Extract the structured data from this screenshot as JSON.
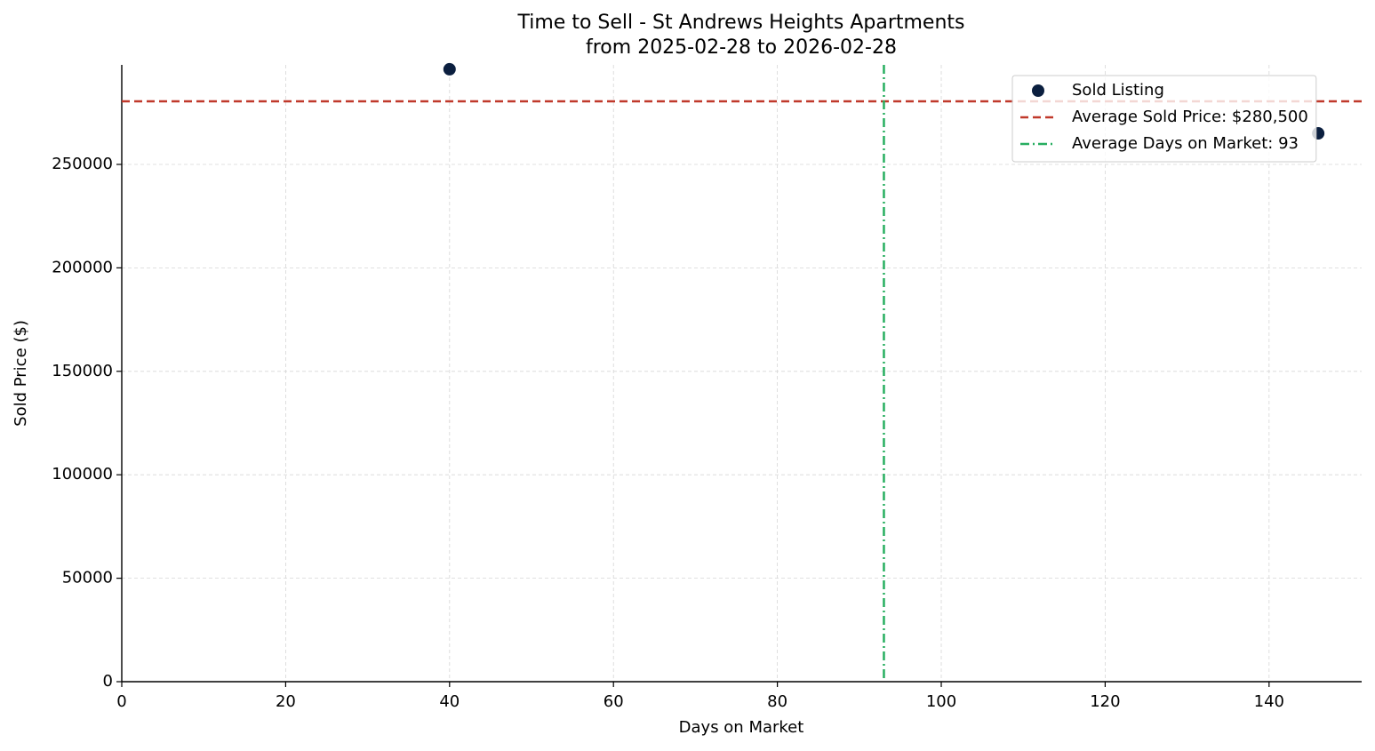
{
  "chart_data": {
    "type": "scatter",
    "title": "Time to Sell - St Andrews Heights Apartments",
    "subtitle": "from 2025-02-28 to 2026-02-28",
    "x_label": "Days on Market",
    "y_label": "Sold Price ($)",
    "series": [
      {
        "name": "Sold Listing",
        "color": "#0b1f3f",
        "x": [
          40,
          146
        ],
        "values": [
          296000,
          265000
        ]
      }
    ],
    "hlines": [
      {
        "name": "Average Sold Price: $280,500",
        "value": 280500,
        "color": "#c0392b",
        "style": "dashed"
      }
    ],
    "vlines": [
      {
        "name": "Average Days on Market: 93",
        "value": 93,
        "color": "#27ae60",
        "style": "dashdot"
      }
    ],
    "xlim": [
      0,
      151.3
    ],
    "ylim": [
      0,
      298100
    ],
    "xticks": [
      0,
      20,
      40,
      60,
      80,
      100,
      120,
      140
    ],
    "yticks": [
      0,
      50000,
      100000,
      150000,
      200000,
      250000
    ],
    "grid": true,
    "legend": "upper right"
  }
}
